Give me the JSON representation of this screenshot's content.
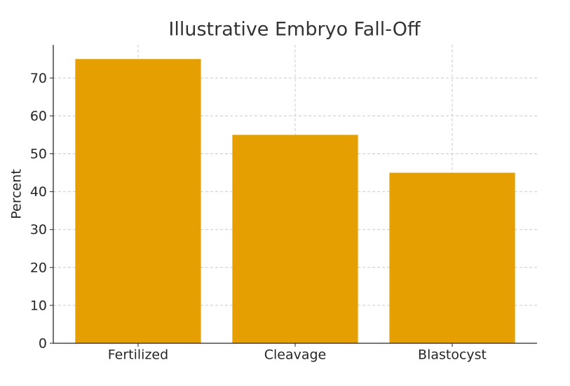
{
  "chart_data": {
    "type": "bar",
    "title": "Illustrative Embryo Fall-Off",
    "y_label": "Percent",
    "categories": [
      "Fertilized",
      "Cleavage",
      "Blastocyst"
    ],
    "values": [
      75,
      55,
      45
    ],
    "color": "#e69f00",
    "ylim": [
      0,
      78.75
    ],
    "yticks": [
      0,
      10,
      20,
      30,
      40,
      50,
      60,
      70
    ],
    "grid": true
  }
}
